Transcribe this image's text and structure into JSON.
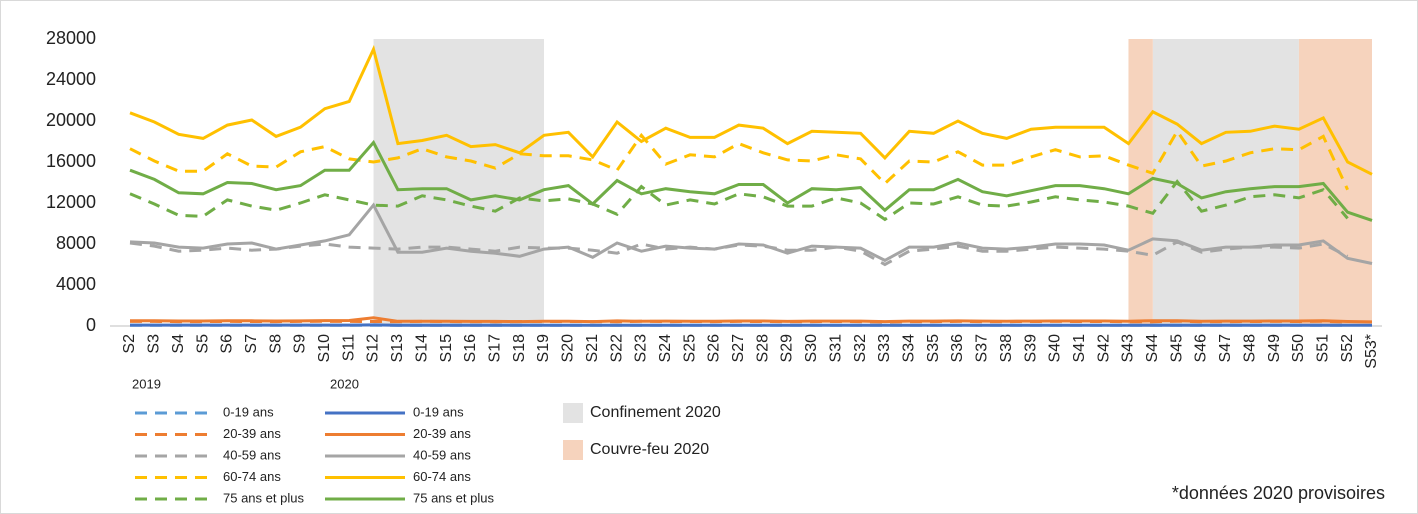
{
  "chart_data": {
    "type": "line",
    "categories": [
      "S2",
      "S3",
      "S4",
      "S5",
      "S6",
      "S7",
      "S8",
      "S9",
      "S10",
      "S11",
      "S12",
      "S13",
      "S14",
      "S15",
      "S16",
      "S17",
      "S18",
      "S19",
      "S20",
      "S21",
      "S22",
      "S23",
      "S24",
      "S25",
      "S26",
      "S27",
      "S28",
      "S29",
      "S30",
      "S31",
      "S32",
      "S33",
      "S34",
      "S35",
      "S36",
      "S37",
      "S38",
      "S39",
      "S40",
      "S41",
      "S42",
      "S43",
      "S44",
      "S45",
      "S46",
      "S47",
      "S48",
      "S49",
      "S50",
      "S51",
      "S52",
      "S53*"
    ],
    "ylim": [
      0,
      28000
    ],
    "yticks": [
      0,
      4000,
      8000,
      12000,
      16000,
      20000,
      24000,
      28000
    ],
    "grid": false,
    "legend_titles": [
      "2019",
      "2020"
    ],
    "series": [
      {
        "name": "0-19 ans",
        "color": "#5b9bd5",
        "linestyle": "dashed",
        "values": [
          80,
          80,
          80,
          80,
          80,
          80,
          80,
          80,
          80,
          80,
          80,
          80,
          80,
          80,
          80,
          80,
          80,
          80,
          80,
          80,
          80,
          80,
          80,
          80,
          80,
          80,
          80,
          80,
          80,
          80,
          80,
          80,
          80,
          80,
          80,
          80,
          80,
          80,
          80,
          80,
          80,
          80,
          80,
          80,
          80,
          80,
          80,
          80,
          80,
          80,
          80,
          null
        ]
      },
      {
        "name": "20-39 ans",
        "color": "#ed7d31",
        "linestyle": "dashed",
        "values": [
          450,
          450,
          430,
          430,
          450,
          440,
          430,
          450,
          460,
          450,
          440,
          430,
          450,
          440,
          430,
          420,
          440,
          440,
          440,
          430,
          420,
          460,
          430,
          440,
          430,
          450,
          440,
          430,
          430,
          440,
          430,
          400,
          430,
          430,
          450,
          430,
          430,
          440,
          450,
          440,
          440,
          430,
          420,
          470,
          420,
          430,
          440,
          450,
          440,
          460,
          400,
          null
        ]
      },
      {
        "name": "40-59 ans",
        "color": "#a5a5a5",
        "linestyle": "dashed",
        "values": [
          8100,
          7800,
          7300,
          7400,
          7600,
          7400,
          7500,
          7800,
          8000,
          7700,
          7600,
          7500,
          7700,
          7700,
          7500,
          7300,
          7700,
          7600,
          7600,
          7400,
          7100,
          8000,
          7500,
          7700,
          7500,
          7900,
          7800,
          7400,
          7400,
          7700,
          7300,
          6000,
          7300,
          7500,
          7800,
          7300,
          7300,
          7500,
          7700,
          7600,
          7500,
          7300,
          6900,
          8200,
          7200,
          7500,
          7700,
          7700,
          7600,
          8000,
          6800,
          null
        ]
      },
      {
        "name": "60-74 ans",
        "color": "#ffc000",
        "linestyle": "dashed",
        "values": [
          17300,
          16100,
          15100,
          15100,
          16800,
          15600,
          15500,
          17000,
          17500,
          16300,
          16000,
          16400,
          17300,
          16500,
          16100,
          15400,
          16800,
          16600,
          16600,
          16200,
          15200,
          18600,
          15800,
          16700,
          16500,
          17800,
          16900,
          16200,
          16100,
          16700,
          16300,
          13900,
          16100,
          16000,
          17000,
          15700,
          15700,
          16500,
          17200,
          16500,
          16600,
          15700,
          14900,
          19000,
          15600,
          16100,
          16900,
          17300,
          17200,
          18500,
          13300,
          null
        ]
      },
      {
        "name": "75 ans et plus",
        "color": "#70ad47",
        "linestyle": "dashed",
        "values": [
          12900,
          11900,
          10800,
          10700,
          12300,
          11700,
          11300,
          12000,
          12800,
          12300,
          11800,
          11700,
          12700,
          12300,
          11700,
          11200,
          12500,
          12200,
          12400,
          11900,
          10900,
          13600,
          11800,
          12300,
          11900,
          12900,
          12600,
          11700,
          11700,
          12500,
          12000,
          10400,
          12000,
          11900,
          12600,
          11800,
          11700,
          12100,
          12600,
          12300,
          12100,
          11700,
          11000,
          14100,
          11200,
          11800,
          12600,
          12800,
          12500,
          13300,
          10500,
          null
        ]
      },
      {
        "name": "0-19 ans",
        "color": "#4472c4",
        "linestyle": "solid",
        "values": [
          90,
          90,
          90,
          90,
          90,
          90,
          90,
          90,
          90,
          90,
          110,
          80,
          80,
          80,
          80,
          80,
          80,
          80,
          80,
          80,
          80,
          80,
          80,
          80,
          80,
          80,
          80,
          80,
          80,
          80,
          80,
          80,
          80,
          80,
          80,
          80,
          80,
          80,
          80,
          80,
          80,
          80,
          80,
          80,
          80,
          80,
          80,
          80,
          80,
          80,
          80,
          80
        ]
      },
      {
        "name": "20-39 ans",
        "color": "#ed7d31",
        "linestyle": "solid",
        "values": [
          520,
          510,
          490,
          490,
          510,
          510,
          490,
          500,
          530,
          540,
          800,
          460,
          460,
          470,
          450,
          450,
          430,
          460,
          470,
          430,
          500,
          460,
          480,
          470,
          470,
          490,
          490,
          450,
          480,
          480,
          480,
          430,
          480,
          480,
          500,
          480,
          470,
          480,
          490,
          490,
          490,
          470,
          520,
          510,
          470,
          480,
          480,
          490,
          490,
          510,
          440,
          400
        ]
      },
      {
        "name": "40-59 ans",
        "color": "#a5a5a5",
        "linestyle": "solid",
        "values": [
          8200,
          8100,
          7700,
          7600,
          8000,
          8100,
          7500,
          7900,
          8300,
          8900,
          11800,
          7200,
          7200,
          7600,
          7300,
          7100,
          6800,
          7500,
          7700,
          6700,
          8100,
          7300,
          7800,
          7600,
          7500,
          8000,
          7900,
          7100,
          7800,
          7700,
          7600,
          6400,
          7700,
          7700,
          8100,
          7600,
          7500,
          7700,
          8000,
          8000,
          7900,
          7400,
          8500,
          8300,
          7400,
          7700,
          7700,
          7900,
          7900,
          8300,
          6600,
          6100
        ]
      },
      {
        "name": "60-74 ans",
        "color": "#ffc000",
        "linestyle": "solid",
        "values": [
          20800,
          19900,
          18700,
          18300,
          19600,
          20100,
          18500,
          19400,
          21200,
          21900,
          27000,
          17800,
          18100,
          18600,
          17500,
          17700,
          16900,
          18600,
          18900,
          16500,
          19900,
          18000,
          19300,
          18400,
          18400,
          19600,
          19300,
          17800,
          19000,
          18900,
          18800,
          16400,
          19000,
          18800,
          20000,
          18800,
          18300,
          19200,
          19400,
          19400,
          19400,
          17800,
          20900,
          19700,
          17800,
          18900,
          19000,
          19500,
          19200,
          20300,
          16000,
          14800
        ]
      },
      {
        "name": "75 ans et plus",
        "color": "#70ad47",
        "linestyle": "solid",
        "values": [
          15200,
          14300,
          13000,
          12900,
          14000,
          13900,
          13300,
          13700,
          15200,
          15200,
          17900,
          13300,
          13400,
          13400,
          12300,
          12700,
          12300,
          13300,
          13700,
          11900,
          14200,
          12900,
          13400,
          13100,
          12900,
          13800,
          13800,
          12000,
          13400,
          13300,
          13500,
          11300,
          13300,
          13300,
          14300,
          13100,
          12700,
          13200,
          13700,
          13700,
          13400,
          12900,
          14400,
          13900,
          12500,
          13100,
          13400,
          13600,
          13600,
          13900,
          11100,
          10300
        ]
      }
    ],
    "shades": [
      {
        "label": "Confinement 2020",
        "color": "#e3e3e3",
        "ranges": [
          [
            "S12",
            "S19"
          ],
          [
            "S44",
            "S50"
          ]
        ]
      },
      {
        "label": "Couvre-feu 2020",
        "color": "#f6d3bd",
        "ranges": [
          [
            "S43",
            "S44"
          ],
          [
            "S50",
            "S53*"
          ]
        ]
      }
    ],
    "annotation": "*données 2020 provisoires"
  }
}
